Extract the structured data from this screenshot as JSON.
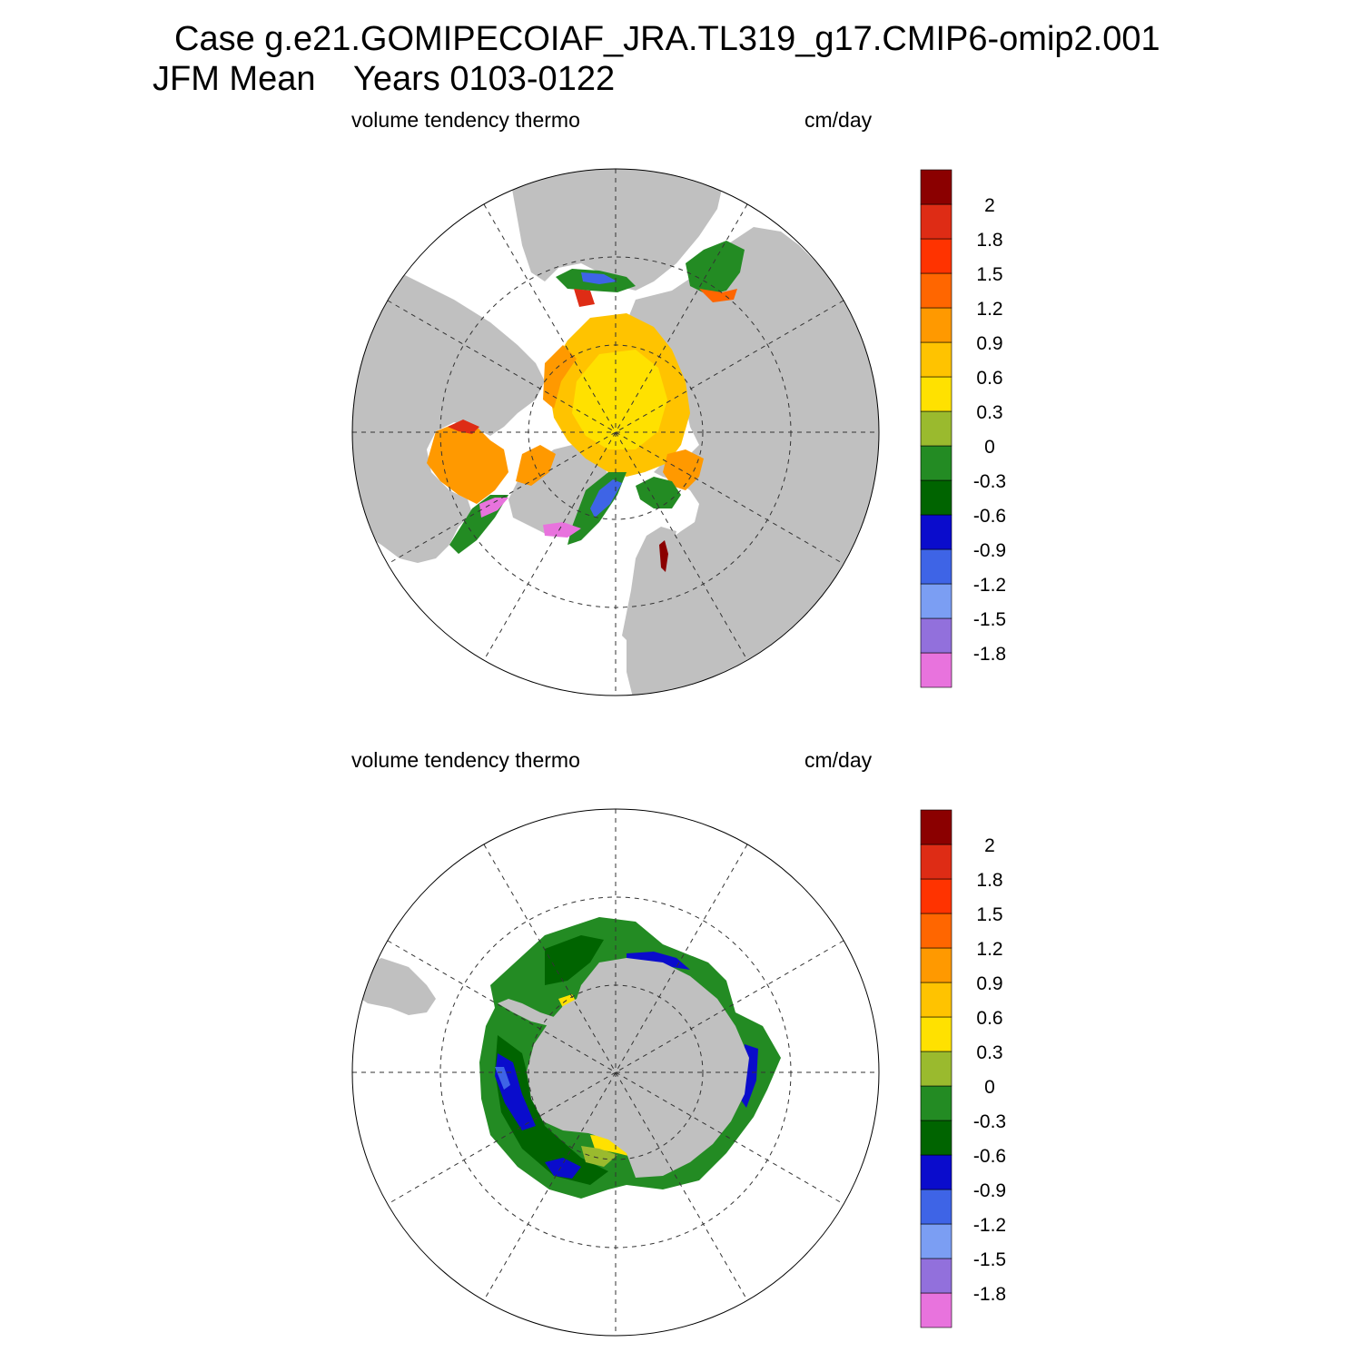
{
  "title": {
    "line1": "Case g.e21.GOMIPECOIAF_JRA.TL319_g17.CMIP6-omip2.001",
    "line2_season": "JFM Mean",
    "line2_years": "Years 0103-0122"
  },
  "colors": {
    "land": "#c0c0c0",
    "ocean": "#ffffff",
    "levels": [
      "#e873dd",
      "#9270dc",
      "#7b9ef3",
      "#3e64e6",
      "#0a0ccc",
      "#006400",
      "#238b23",
      "#9aba2e",
      "#ffe100",
      "#ffc300",
      "#ff9900",
      "#ff6600",
      "#ff3300",
      "#de2c15",
      "#8b0000"
    ]
  },
  "colorbar": {
    "labels": [
      "-1.8",
      "-1.5",
      "-1.2",
      "-0.9",
      "-0.6",
      "-0.3",
      "0",
      "0.3",
      "0.6",
      "0.9",
      "1.2",
      "1.5",
      "1.8",
      "2"
    ]
  },
  "panels": [
    {
      "id": "north",
      "variable": "volume tendency thermo",
      "units": "cm/day",
      "hemisphere": "Northern",
      "value_range_cm_per_day": [
        -2.0,
        2.2
      ]
    },
    {
      "id": "south",
      "variable": "volume tendency thermo",
      "units": "cm/day",
      "hemisphere": "Southern",
      "value_range_cm_per_day": [
        -1.5,
        0.6
      ]
    }
  ]
}
